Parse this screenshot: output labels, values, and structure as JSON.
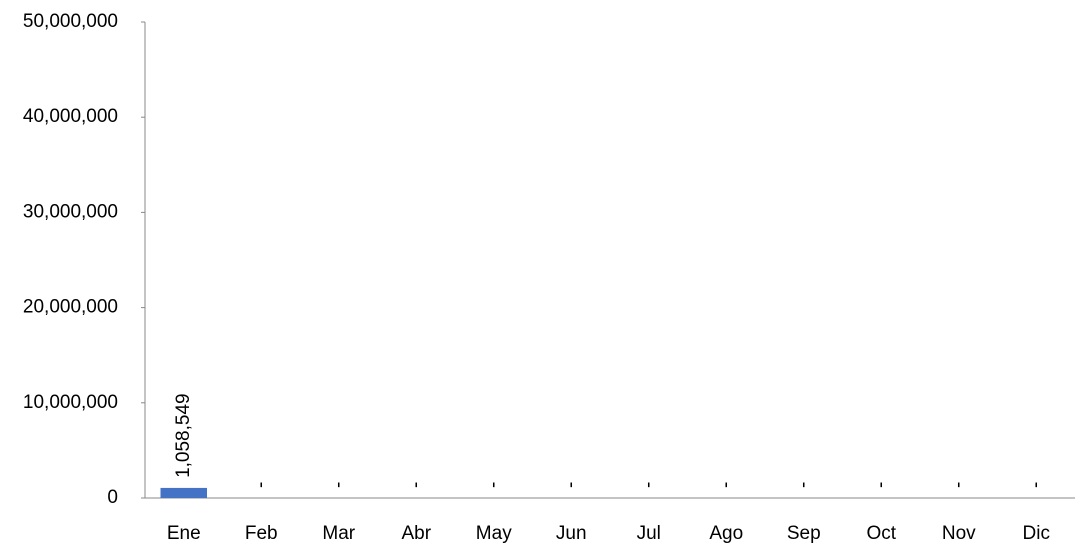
{
  "chart_data": {
    "type": "bar",
    "categories": [
      "Ene",
      "Feb",
      "Mar",
      "Abr",
      "May",
      "Jun",
      "Jul",
      "Ago",
      "Sep",
      "Oct",
      "Nov",
      "Dic"
    ],
    "values": [
      1058549,
      null,
      null,
      null,
      null,
      null,
      null,
      null,
      null,
      null,
      null,
      null
    ],
    "value_labels": [
      "1,058,549",
      "-",
      "-",
      "-",
      "-",
      "-",
      "-",
      "-",
      "-",
      "-",
      "-",
      "-"
    ],
    "color": "#4472c4",
    "ylim": [
      0,
      50000000
    ],
    "yticks": [
      0,
      {
        "value": 10000000,
        "label": "10,000,000"
      },
      {
        "value": 20000000,
        "label": "20,000,000"
      },
      {
        "value": 30000000,
        "label": "30,000,000"
      },
      {
        "value": 40000000,
        "label": "40,000,000"
      },
      {
        "value": 50000000,
        "label": "50,000,000"
      }
    ],
    "grid": false
  }
}
